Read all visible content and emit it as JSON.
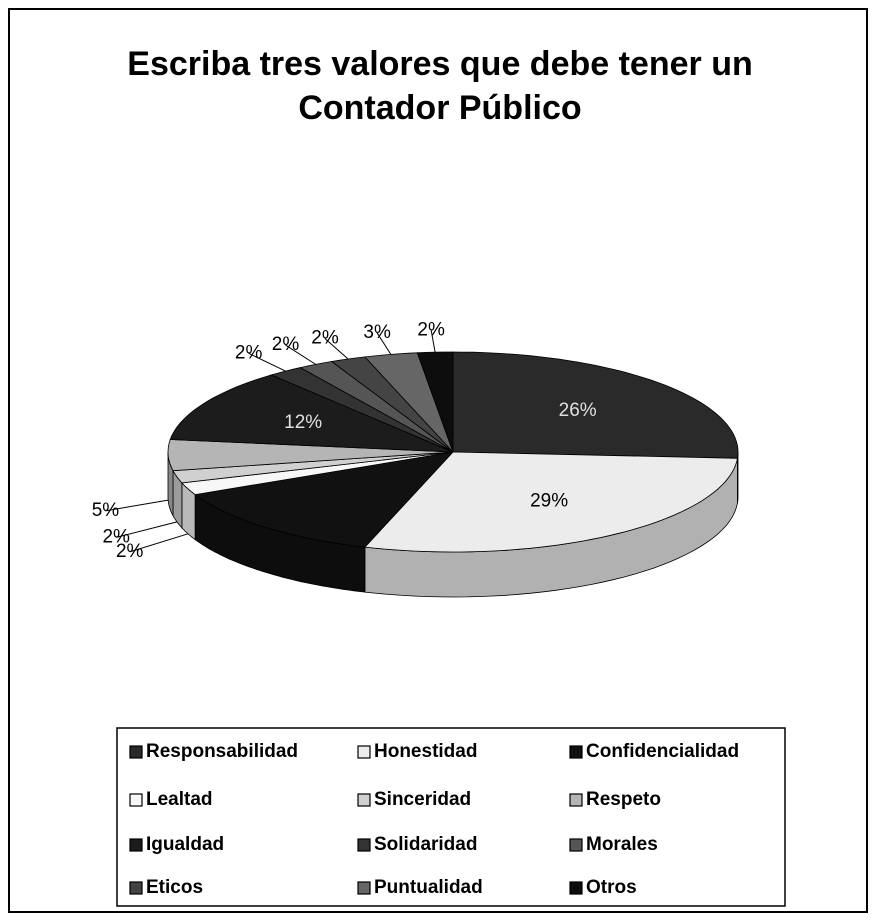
{
  "chart_data": {
    "type": "pie3d",
    "title": "Escriba tres valores que debe tener un Contador Público",
    "categories": [
      "Responsabilidad",
      "Honestidad",
      "Confidencialidad",
      "Lealtad",
      "Sinceridad",
      "Respeto",
      "Igualdad",
      "Solidaridad",
      "Morales",
      "Eticos",
      "Puntualidad",
      "Otros"
    ],
    "values": [
      26,
      29,
      13,
      2,
      2,
      5,
      12,
      2,
      2,
      2,
      3,
      2
    ],
    "value_labels": [
      "26%",
      "29%",
      null,
      "2%",
      "2%",
      "5%",
      "12%",
      "2%",
      "2%",
      "2%",
      "3%",
      "2%"
    ],
    "colors": [
      "#2a2a2a",
      "#ececec",
      "#111111",
      "#f7f7f7",
      "#d0d0d0",
      "#b5b5b5",
      "#1c1c1c",
      "#333333",
      "#555555",
      "#444444",
      "#666666",
      "#0d0d0d"
    ],
    "legend": "bottom"
  }
}
